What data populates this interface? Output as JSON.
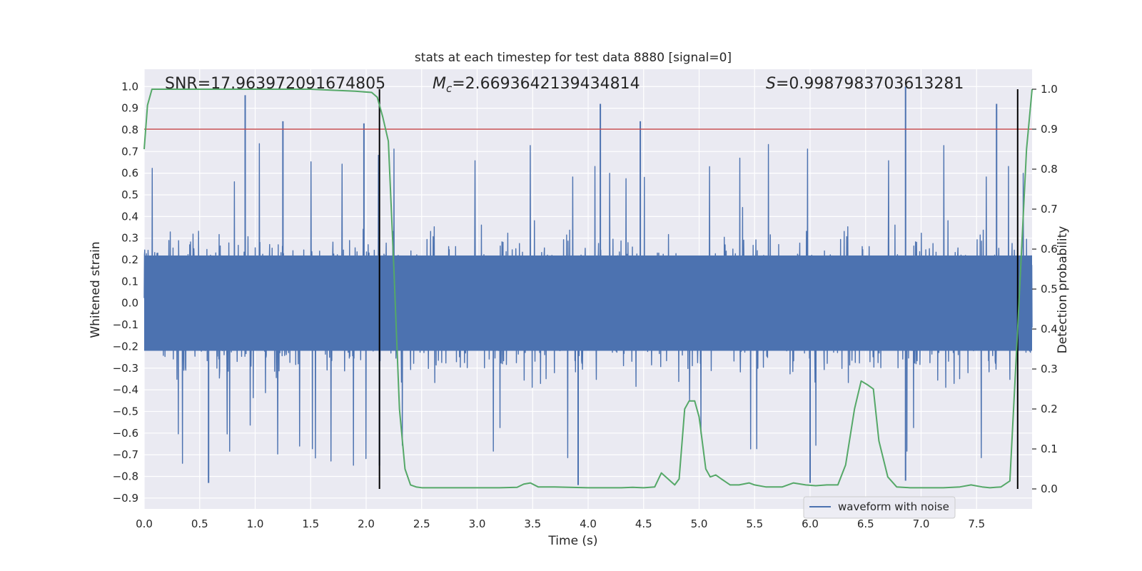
{
  "chart_data": {
    "type": "line",
    "title": "stats at each timestep for test data 8880 [signal=0]",
    "xlabel": "Time (s)",
    "ylabel": "Whitened strain",
    "ylabel_right": "Detection probability",
    "xlim": [
      0,
      8
    ],
    "ylim": [
      -0.95,
      1.08
    ],
    "ylim_right": [
      -0.05,
      1.05
    ],
    "grid": true,
    "legend_placement": "lower-right",
    "x_ticks": [
      "0.0",
      "0.5",
      "1.0",
      "1.5",
      "2.0",
      "2.5",
      "3.0",
      "3.5",
      "4.0",
      "4.5",
      "5.0",
      "5.5",
      "6.0",
      "6.5",
      "7.0",
      "7.5"
    ],
    "x_tick_values": [
      0,
      0.5,
      1,
      1.5,
      2,
      2.5,
      3,
      3.5,
      4,
      4.5,
      5,
      5.5,
      6,
      6.5,
      7,
      7.5
    ],
    "y_ticks": [
      "1.0",
      "0.9",
      "0.8",
      "0.7",
      "0.6",
      "0.5",
      "0.4",
      "0.3",
      "0.2",
      "0.1",
      "0.0",
      "−0.1",
      "−0.2",
      "−0.3",
      "−0.4",
      "−0.5",
      "−0.6",
      "−0.7",
      "−0.8",
      "−0.9"
    ],
    "y_tick_values": [
      1.0,
      0.9,
      0.8,
      0.7,
      0.6,
      0.5,
      0.4,
      0.3,
      0.2,
      0.1,
      0.0,
      -0.1,
      -0.2,
      -0.3,
      -0.4,
      -0.5,
      -0.6,
      -0.7,
      -0.8,
      -0.9
    ],
    "y_right_ticks": [
      "1.0",
      "0.9",
      "0.8",
      "0.7",
      "0.6",
      "0.5",
      "0.4",
      "0.3",
      "0.2",
      "0.1",
      "0.0"
    ],
    "y_right_tick_values": [
      1.0,
      0.9,
      0.8,
      0.7,
      0.6,
      0.5,
      0.4,
      0.3,
      0.2,
      0.1,
      0.0
    ],
    "annotations": {
      "snr": "SNR=17.963972091674805",
      "mc_symbol": "M",
      "mc_sub": "c",
      "mc_value": "=2.6693642139434814",
      "s_symbol": "S",
      "s_value": "=0.9987983703613281"
    },
    "threshold_right": 0.9,
    "vertical_lines_x": [
      2.12,
      7.87
    ],
    "series": [
      {
        "name": "waveform with noise",
        "axis": "left",
        "color": "#4c72b0",
        "description_envelope": "noise waveform between about -0.85 and 0.97",
        "spikes_up": [
          [
            0.91,
            0.96
          ],
          [
            1.25,
            0.84
          ],
          [
            1.98,
            0.83
          ],
          [
            4.11,
            0.92
          ],
          [
            4.47,
            0.84
          ],
          [
            6.86,
            1.0
          ],
          [
            7.68,
            0.92
          ]
        ],
        "spikes_down": [
          [
            0.58,
            -0.83
          ],
          [
            2.12,
            -0.75
          ],
          [
            3.91,
            -0.84
          ],
          [
            6.0,
            -0.83
          ],
          [
            6.86,
            -0.82
          ]
        ]
      },
      {
        "name": "",
        "axis": "right",
        "color": "#55a868",
        "x": [
          0.0,
          0.03,
          0.07,
          0.2,
          0.5,
          1.0,
          1.5,
          1.9,
          2.05,
          2.1,
          2.15,
          2.2,
          2.25,
          2.3,
          2.35,
          2.4,
          2.45,
          2.5,
          2.6,
          2.8,
          3.0,
          3.2,
          3.36,
          3.42,
          3.48,
          3.55,
          3.7,
          4.0,
          4.3,
          4.4,
          4.5,
          4.6,
          4.66,
          4.72,
          4.78,
          4.82,
          4.87,
          4.91,
          4.96,
          5.0,
          5.06,
          5.1,
          5.15,
          5.2,
          5.28,
          5.36,
          5.45,
          5.5,
          5.6,
          5.75,
          5.85,
          5.96,
          6.05,
          6.15,
          6.25,
          6.32,
          6.4,
          6.46,
          6.52,
          6.57,
          6.62,
          6.7,
          6.78,
          6.9,
          7.05,
          7.2,
          7.35,
          7.45,
          7.55,
          7.62,
          7.72,
          7.8,
          7.87,
          7.95,
          8.0
        ],
        "y": [
          0.85,
          0.96,
          1.0,
          1.0,
          1.0,
          1.0,
          1.0,
          0.995,
          0.992,
          0.98,
          0.93,
          0.87,
          0.55,
          0.2,
          0.05,
          0.01,
          0.005,
          0.003,
          0.003,
          0.003,
          0.003,
          0.003,
          0.004,
          0.012,
          0.015,
          0.005,
          0.005,
          0.003,
          0.003,
          0.004,
          0.003,
          0.005,
          0.04,
          0.025,
          0.01,
          0.025,
          0.2,
          0.22,
          0.22,
          0.18,
          0.05,
          0.03,
          0.035,
          0.025,
          0.01,
          0.01,
          0.015,
          0.01,
          0.005,
          0.005,
          0.015,
          0.01,
          0.008,
          0.01,
          0.01,
          0.06,
          0.2,
          0.27,
          0.26,
          0.25,
          0.12,
          0.03,
          0.005,
          0.003,
          0.003,
          0.003,
          0.005,
          0.01,
          0.005,
          0.003,
          0.005,
          0.02,
          0.4,
          0.85,
          1.0
        ]
      },
      {
        "name": "",
        "axis": "right",
        "color": "#c44e52",
        "x": [
          0,
          8
        ],
        "y": [
          0.9,
          0.9
        ]
      }
    ]
  }
}
